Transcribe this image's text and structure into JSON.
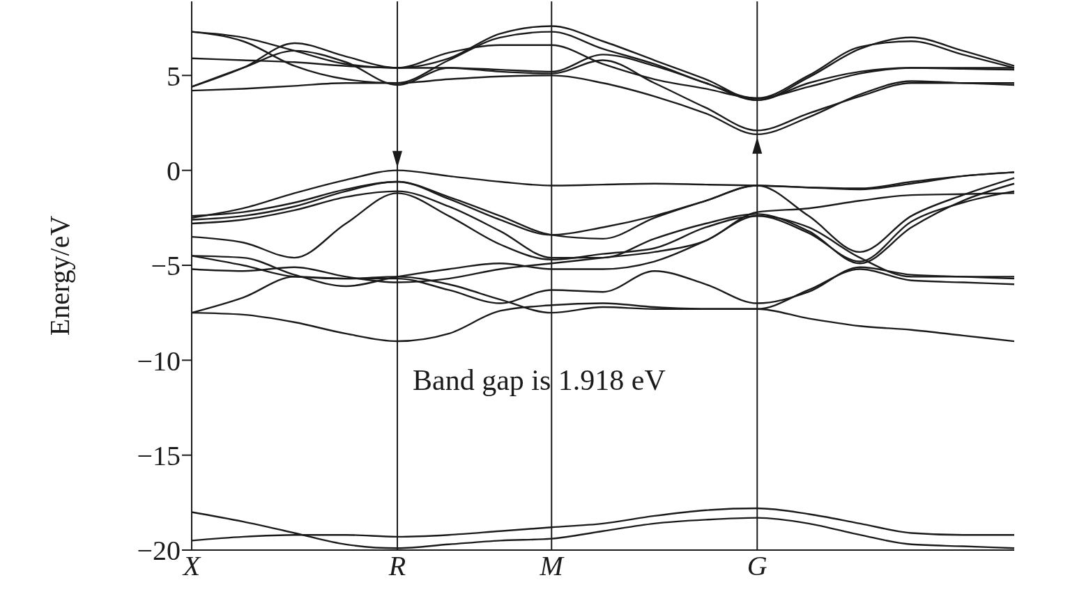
{
  "chart_data": {
    "type": "line",
    "ylabel": "Energy/eV",
    "categories": [
      "X",
      null,
      null,
      null,
      "R",
      null,
      null,
      "M",
      null,
      null,
      null,
      "G",
      null,
      null,
      null,
      null,
      null
    ],
    "ylim": [
      -20,
      8.9
    ],
    "yticks": [
      {
        "value": -20,
        "label": "−20"
      },
      {
        "value": -15,
        "label": "−15"
      },
      {
        "value": -10,
        "label": "−10"
      },
      {
        "value": -5,
        "label": "−5"
      },
      0,
      5
    ],
    "marker": "none",
    "line_style": "solid",
    "ref_lines": [
      {
        "axis": "x",
        "value": "R",
        "color": "#1a1a1a"
      },
      {
        "axis": "x",
        "value": "M",
        "color": "#1a1a1a"
      },
      {
        "axis": "x",
        "value": "G",
        "color": "#1a1a1a"
      }
    ],
    "annotations": [
      "Band gap is 1.918 eV"
    ],
    "series": [
      {
        "color": "#1a1a1a",
        "values": [
          4.2,
          4.3,
          4.45,
          4.6,
          4.6,
          4.8,
          4.95,
          5.0,
          4.6,
          3.9,
          3.0,
          1.9,
          2.8,
          4.0,
          4.7,
          4.6,
          4.5
        ]
      },
      {
        "color": "#1a1a1a",
        "values": [
          4.4,
          5.4,
          6.3,
          5.7,
          4.5,
          5.4,
          5.2,
          5.1,
          5.8,
          4.6,
          3.3,
          2.1,
          3.0,
          3.9,
          4.6,
          4.6,
          4.6
        ]
      },
      {
        "color": "#1a1a1a",
        "values": [
          5.9,
          5.8,
          5.7,
          5.5,
          5.4,
          5.4,
          5.3,
          5.2,
          6.1,
          5.5,
          4.6,
          3.7,
          4.6,
          5.2,
          5.4,
          5.4,
          5.4
        ]
      },
      {
        "color": "#1a1a1a",
        "values": [
          7.3,
          6.8,
          5.5,
          4.8,
          4.6,
          5.8,
          7.0,
          7.3,
          6.4,
          5.6,
          4.6,
          3.8,
          5.0,
          6.5,
          6.8,
          6.1,
          5.4
        ]
      },
      {
        "color": "#1a1a1a",
        "values": [
          7.3,
          7.0,
          6.3,
          5.6,
          5.4,
          5.9,
          7.2,
          7.6,
          6.8,
          5.8,
          4.8,
          3.7,
          4.9,
          6.4,
          7.0,
          6.3,
          5.5
        ]
      },
      {
        "color": "#1a1a1a",
        "values": [
          4.4,
          5.4,
          6.7,
          6.0,
          5.4,
          6.2,
          6.6,
          6.6,
          5.6,
          4.8,
          4.3,
          3.8,
          4.4,
          5.1,
          5.4,
          5.35,
          5.3
        ]
      },
      {
        "color": "#1a1a1a",
        "values": [
          -2.5,
          -2.0,
          -1.2,
          -0.5,
          0,
          -0.3,
          -0.6,
          -0.8,
          -0.75,
          -0.7,
          -0.75,
          -0.8,
          -0.9,
          -0.95,
          -0.6,
          -0.3,
          -0.1
        ]
      },
      {
        "color": "#1a1a1a",
        "values": [
          -2.4,
          -2.2,
          -1.7,
          -1.0,
          -0.6,
          -1.4,
          -2.4,
          -3.4,
          -3.6,
          -2.5,
          -1.6,
          -0.8,
          -0.9,
          -1.0,
          -0.7,
          -0.3,
          -0.1
        ]
      },
      {
        "color": "#1a1a1a",
        "values": [
          -2.6,
          -2.4,
          -1.9,
          -1.1,
          -0.6,
          -1.5,
          -2.6,
          -3.4,
          -3.0,
          -2.4,
          -1.6,
          -0.8,
          -2.4,
          -4.3,
          -2.4,
          -1.3,
          -0.4
        ]
      },
      {
        "color": "#1a1a1a",
        "values": [
          -2.8,
          -2.6,
          -2.1,
          -1.4,
          -1.1,
          -1.9,
          -3.2,
          -4.6,
          -4.6,
          -3.6,
          -2.8,
          -2.3,
          -3.2,
          -4.9,
          -3.0,
          -1.6,
          -0.7
        ]
      },
      {
        "color": "#1a1a1a",
        "values": [
          -3.5,
          -3.8,
          -4.6,
          -2.8,
          -1.2,
          -2.4,
          -3.9,
          -4.7,
          -4.4,
          -4.1,
          -3.0,
          -2.4,
          -3.3,
          -4.8,
          -2.7,
          -1.7,
          -1.1
        ]
      },
      {
        "color": "#1a1a1a",
        "values": [
          -4.5,
          -5.0,
          -5.6,
          -5.7,
          -5.7,
          -6.3,
          -7.0,
          -6.3,
          -6.4,
          -5.3,
          -6.0,
          -7.0,
          -6.4,
          -5.1,
          -5.5,
          -5.6,
          -5.7
        ]
      },
      {
        "color": "#1a1a1a",
        "values": [
          -5.2,
          -5.3,
          -5.1,
          -5.6,
          -5.9,
          -5.7,
          -5.2,
          -4.9,
          -4.6,
          -4.3,
          -3.7,
          -2.2,
          -2.0,
          -1.6,
          -1.3,
          -1.25,
          -1.2
        ]
      },
      {
        "color": "#1a1a1a",
        "values": [
          -7.5,
          -6.7,
          -5.6,
          -5.7,
          -5.6,
          -6.0,
          -6.8,
          -7.5,
          -7.2,
          -7.3,
          -7.3,
          -7.3,
          -6.3,
          -5.2,
          -5.8,
          -5.9,
          -6.0
        ]
      },
      {
        "color": "#1a1a1a",
        "values": [
          -7.5,
          -7.6,
          -8.0,
          -8.6,
          -9.0,
          -8.6,
          -7.4,
          -7.1,
          -7.0,
          -7.2,
          -7.3,
          -7.3,
          -7.8,
          -8.2,
          -8.4,
          -8.7,
          -9.0
        ]
      },
      {
        "color": "#1a1a1a",
        "values": [
          -4.5,
          -4.6,
          -5.5,
          -6.1,
          -5.6,
          -5.2,
          -4.9,
          -5.2,
          -5.2,
          -4.8,
          -3.7,
          -2.4,
          -3.0,
          -4.6,
          -5.6,
          -5.6,
          -5.6
        ]
      },
      {
        "color": "#1a1a1a",
        "values": [
          -18.0,
          -18.5,
          -19.1,
          -19.7,
          -19.9,
          -19.7,
          -19.5,
          -19.4,
          -19.0,
          -18.6,
          -18.4,
          -18.3,
          -18.6,
          -19.2,
          -19.7,
          -19.8,
          -19.9
        ]
      },
      {
        "color": "#1a1a1a",
        "values": [
          -19.5,
          -19.3,
          -19.2,
          -19.2,
          -19.3,
          -19.2,
          -19.0,
          -18.8,
          -18.6,
          -18.2,
          -17.9,
          -17.8,
          -18.1,
          -18.6,
          -19.1,
          -19.2,
          -19.2
        ]
      }
    ]
  }
}
